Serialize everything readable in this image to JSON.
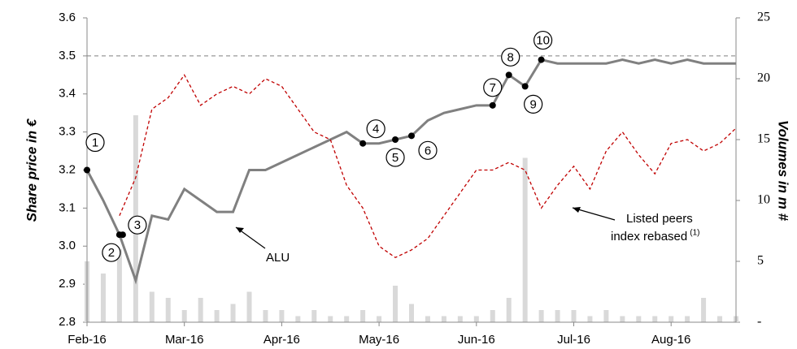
{
  "chart_data": {
    "type": "line",
    "categories": [
      "Feb-16",
      null,
      null,
      null,
      null,
      null,
      "Mar-16",
      null,
      null,
      null,
      null,
      null,
      "Apr-16",
      null,
      null,
      null,
      null,
      null,
      "May-16",
      null,
      null,
      null,
      null,
      null,
      "Jun-16",
      null,
      null,
      null,
      null,
      null,
      "Jul-16",
      null,
      null,
      null,
      null,
      null,
      "Aug-16",
      null,
      null,
      null,
      null
    ],
    "series": [
      {
        "name": "ALU",
        "type": "line",
        "color": "#808080",
        "values": [
          3.2,
          3.12,
          3.03,
          2.91,
          3.08,
          3.07,
          3.15,
          3.12,
          3.09,
          3.09,
          3.2,
          3.2,
          3.22,
          3.24,
          3.26,
          3.28,
          3.3,
          3.27,
          3.27,
          3.28,
          3.29,
          3.33,
          3.35,
          3.36,
          3.37,
          3.37,
          3.45,
          3.42,
          3.49,
          3.48,
          3.48,
          3.48,
          3.48,
          3.49,
          3.48,
          3.49,
          3.48,
          3.49,
          3.48,
          3.48,
          3.48
        ]
      },
      {
        "name": "Listed peers index rebased",
        "type": "dashed",
        "color": "#c00000",
        "values": [
          null,
          null,
          3.08,
          3.18,
          3.36,
          3.39,
          3.45,
          3.37,
          3.4,
          3.42,
          3.4,
          3.44,
          3.42,
          3.36,
          3.3,
          3.28,
          3.16,
          3.1,
          3.0,
          2.97,
          2.99,
          3.02,
          3.08,
          3.14,
          3.2,
          3.2,
          3.22,
          3.2,
          3.1,
          3.16,
          3.21,
          3.15,
          3.25,
          3.3,
          3.24,
          3.19,
          3.27,
          3.28,
          3.25,
          3.27,
          3.31
        ]
      },
      {
        "name": "Volumes",
        "type": "bar",
        "axis": "y2",
        "color": "#d9d9d9",
        "values": [
          5,
          4,
          6,
          17,
          2.5,
          2,
          1,
          2,
          1,
          1.5,
          2.5,
          1,
          1,
          0.5,
          1,
          0.5,
          0.5,
          1,
          0.5,
          3,
          1.5,
          0.5,
          0.5,
          0.5,
          0.5,
          1,
          2,
          13.5,
          1,
          1,
          1,
          0.5,
          1,
          0.5,
          0.5,
          0.5,
          0.5,
          0.5,
          2,
          0.5,
          0.5
        ]
      }
    ],
    "ylabel": "Share price in €",
    "y2label": "Volumes in m #",
    "ylim": [
      2.8,
      3.6
    ],
    "yticks": [
      2.8,
      2.9,
      {
        "value": 3,
        "label": "3.0"
      },
      3.1,
      3.2,
      3.3,
      3.4,
      3.5,
      3.6
    ],
    "y2lim": [
      0,
      25
    ],
    "y2ticks": [
      {
        "value": 0,
        "label": "-"
      },
      5,
      10,
      15,
      20,
      25
    ],
    "reference_line": 3.5,
    "markers": [
      {
        "label": "1",
        "index": 0
      },
      {
        "label": "2",
        "index": 2
      },
      {
        "label": "3",
        "index": 2
      },
      {
        "label": "4",
        "index": 17
      },
      {
        "label": "5",
        "index": 19
      },
      {
        "label": "6",
        "index": 20
      },
      {
        "label": "7",
        "index": 25
      },
      {
        "label": "8",
        "index": 26
      },
      {
        "label": "9",
        "index": 27
      },
      {
        "label": "10",
        "index": 28
      }
    ],
    "annotations": [
      {
        "text": "ALU"
      },
      {
        "text": "Listed peers",
        "text2": "index rebased",
        "note": "(1)"
      }
    ]
  }
}
